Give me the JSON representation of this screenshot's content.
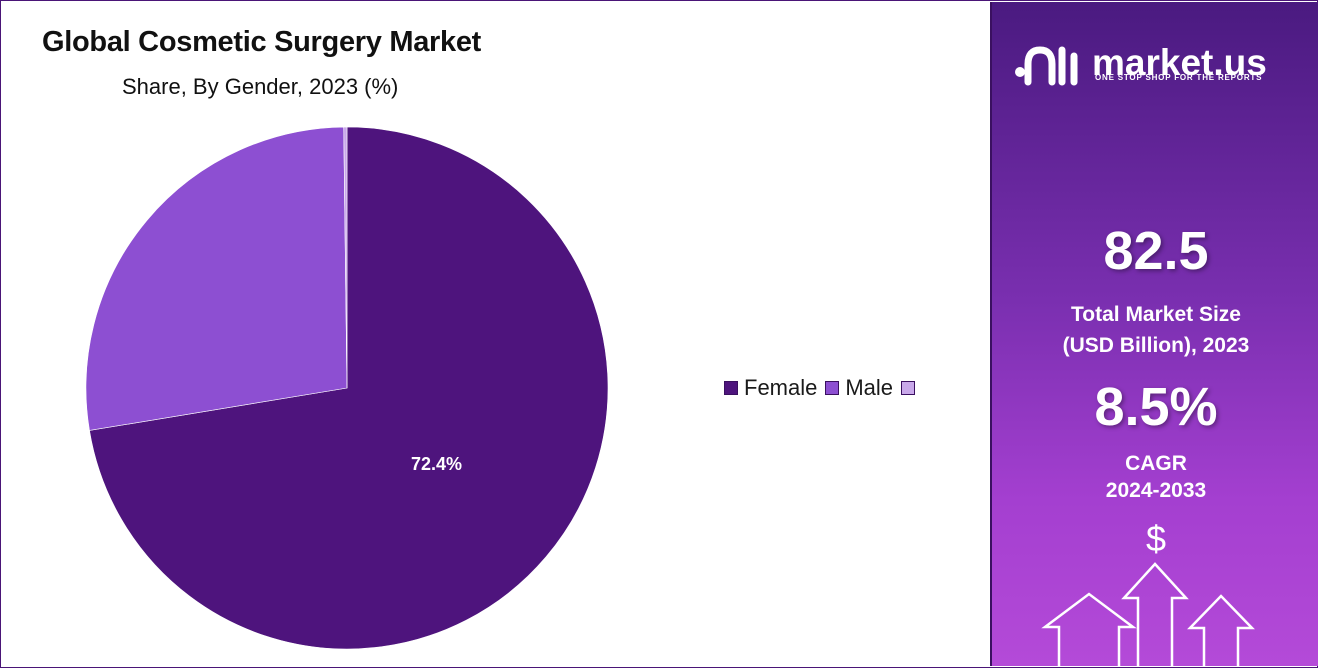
{
  "chart_data": {
    "type": "pie",
    "title": "Global Cosmetic Surgery Market",
    "subtitle": "Share, By Gender, 2023 (%)",
    "categories": [
      "Female",
      "Male",
      ""
    ],
    "values": [
      72.4,
      27.4,
      0.2
    ],
    "data_labels": [
      "72.4%",
      "",
      ""
    ],
    "colors": [
      "#4e147d",
      "#8d4fd2",
      "#c9a8ea"
    ],
    "legend_position": "right"
  },
  "legend": {
    "items": [
      "Female",
      "Male",
      ""
    ]
  },
  "brand": {
    "name": "market.us",
    "tagline": "ONE STOP SHOP FOR THE REPORTS"
  },
  "stats": {
    "market_size_value": "82.5",
    "market_size_label_line1": "Total Market Size",
    "market_size_label_line2": "(USD Billion), 2023",
    "cagr_value": "8.5%",
    "cagr_label_line1": "CAGR",
    "cagr_label_line2": "2024-2033"
  },
  "icons": {
    "currency_symbol": "$",
    "growth_arrows": "up-arrows-icon"
  }
}
